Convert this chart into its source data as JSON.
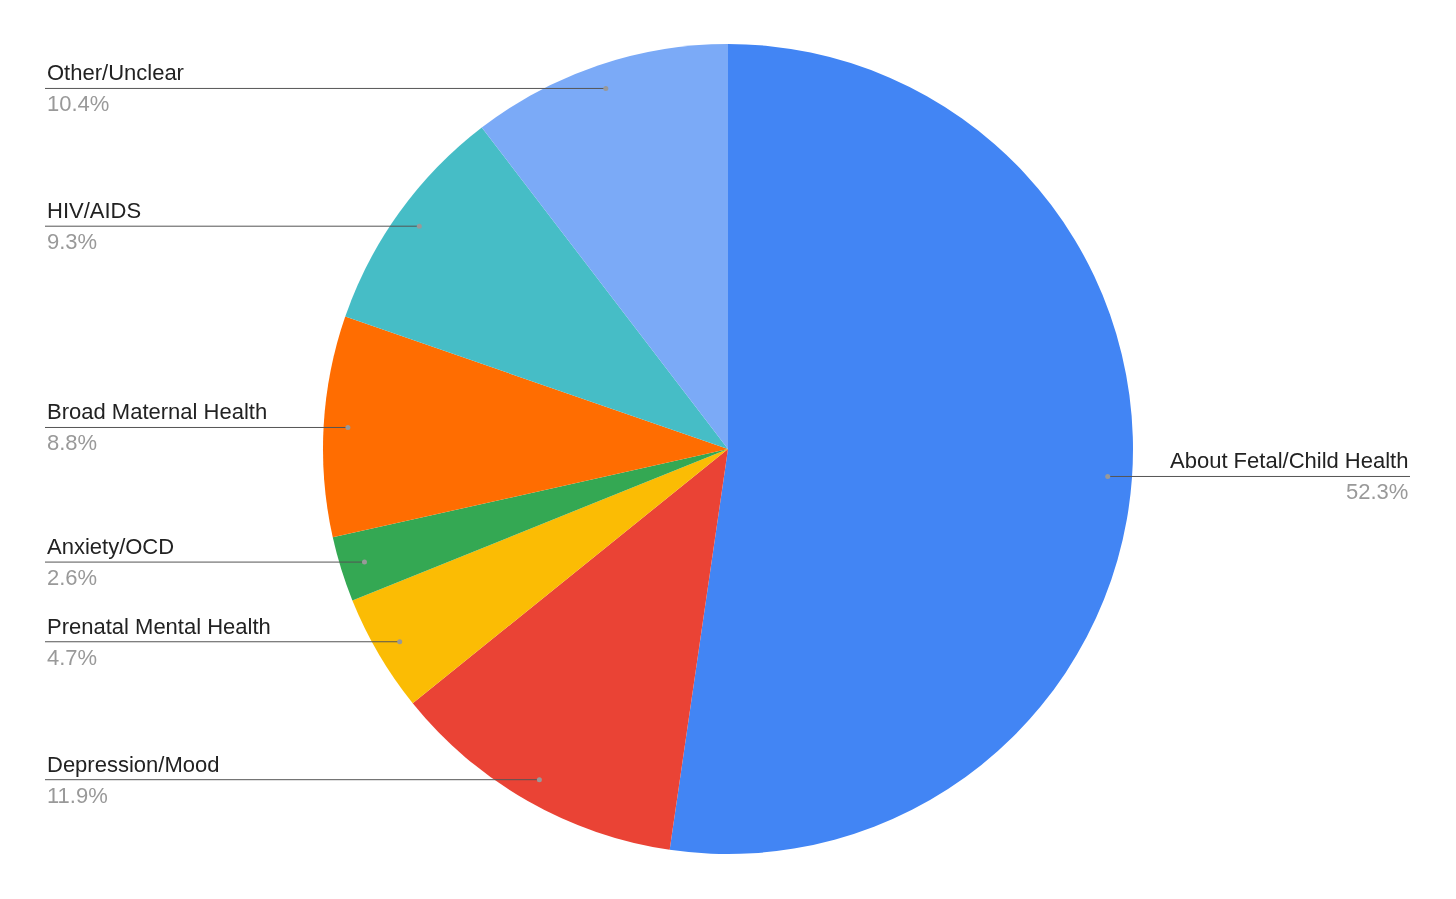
{
  "chart_data": {
    "type": "pie",
    "categories": [
      "About Fetal/Child Health",
      "Depression/Mood",
      "Prenatal Mental Health",
      "Anxiety/OCD",
      "Broad Maternal Health",
      "HIV/AIDS",
      "Other/Unclear"
    ],
    "values": [
      52.3,
      11.9,
      4.7,
      2.6,
      8.8,
      9.3,
      10.4
    ],
    "colors": [
      "#4285f4",
      "#ea4335",
      "#fbbc04",
      "#34a853",
      "#ff6d01",
      "#46bdc6",
      "#7baaf7"
    ],
    "value_labels": [
      "52.3%",
      "11.9%",
      "4.7%",
      "2.6%",
      "8.8%",
      "9.3%",
      "10.4%"
    ]
  }
}
